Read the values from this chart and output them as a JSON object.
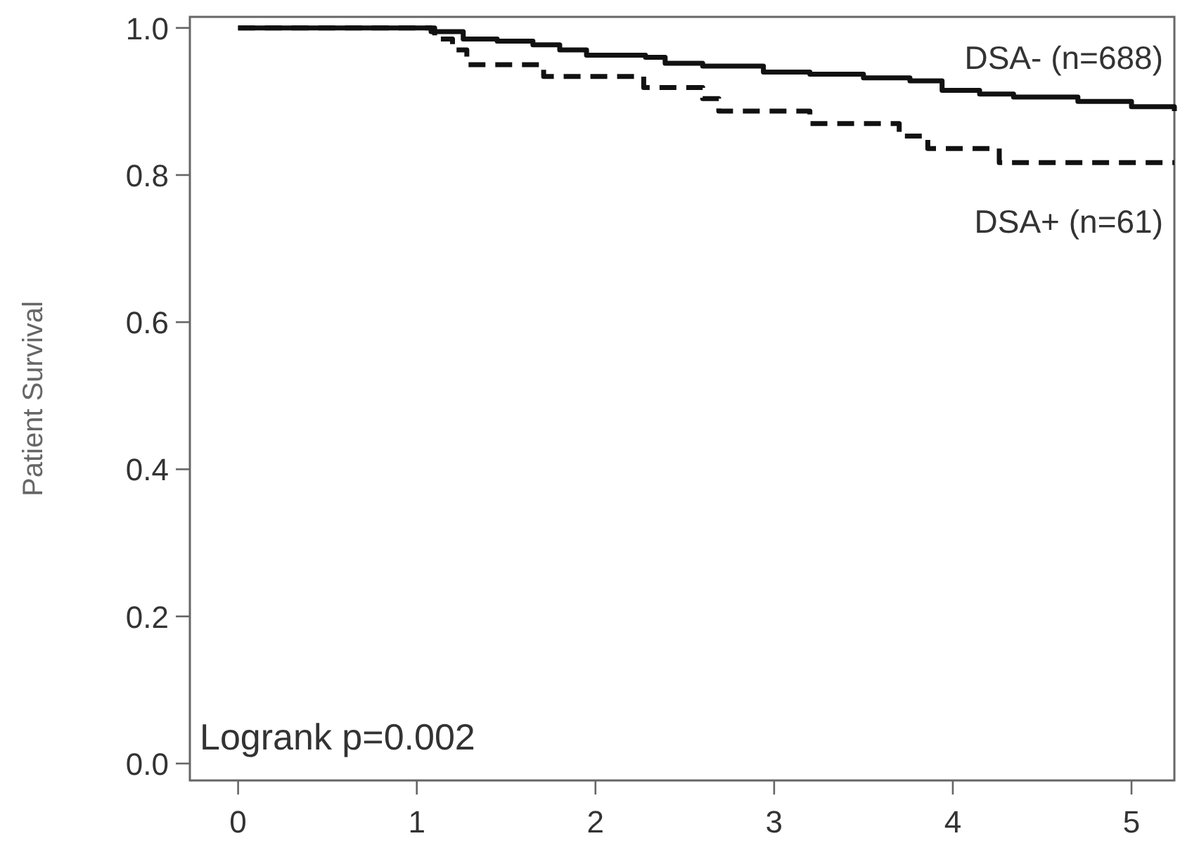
{
  "chart_data": {
    "type": "step",
    "ylabel": "Patient Survival",
    "xlim": [
      -0.27,
      5.24
    ],
    "xticks": [
      0,
      1,
      2,
      3,
      4,
      5
    ],
    "ylim": [
      -0.023,
      1.015
    ],
    "yticks": [
      {
        "value": 0,
        "label": "0.0"
      },
      {
        "value": 0.2,
        "label": "0.2"
      },
      {
        "value": 0.4,
        "label": "0.4"
      },
      {
        "value": 0.6,
        "label": "0.6"
      },
      {
        "value": 0.8,
        "label": "0.8"
      },
      {
        "value": 1,
        "label": "1.0"
      }
    ],
    "series": [
      {
        "name": "DSA- (n=688)",
        "color": "#111111",
        "line_style": "solid",
        "x": [
          0,
          1.08,
          1.26,
          1.45,
          1.65,
          1.8,
          1.95,
          2.28,
          2.39,
          2.6,
          2.94,
          3.2,
          3.5,
          3.76,
          3.94,
          4.15,
          4.34,
          4.7,
          5.0,
          5.24
        ],
        "values": [
          1.0,
          0.995,
          0.985,
          0.982,
          0.977,
          0.97,
          0.963,
          0.96,
          0.952,
          0.948,
          0.94,
          0.937,
          0.932,
          0.928,
          0.915,
          0.91,
          0.906,
          0.9,
          0.893,
          0.887
        ]
      },
      {
        "name": "DSA+ (n=61)",
        "color": "#111111",
        "line_style": "dashed",
        "x": [
          0,
          1.1,
          1.2,
          1.28,
          1.71,
          2.27,
          2.6,
          2.69,
          3.2,
          3.7,
          3.86,
          4.26,
          5.24
        ],
        "values": [
          1.0,
          0.985,
          0.97,
          0.95,
          0.934,
          0.919,
          0.904,
          0.887,
          0.87,
          0.853,
          0.836,
          0.817,
          0.817
        ]
      }
    ],
    "annotations": [
      "Logrank p=0.002"
    ]
  }
}
